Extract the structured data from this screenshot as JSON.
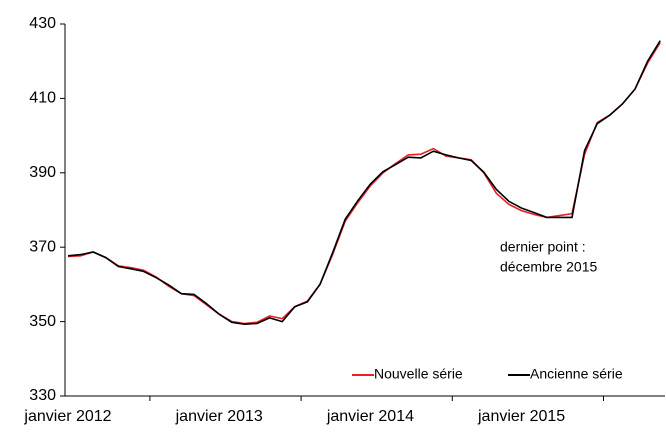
{
  "chart_data": {
    "type": "line",
    "categories": [
      "janvier 2012",
      null,
      null,
      null,
      null,
      null,
      null,
      null,
      null,
      null,
      null,
      null,
      "janvier 2013",
      null,
      null,
      null,
      null,
      null,
      null,
      null,
      null,
      null,
      null,
      null,
      "janvier 2014",
      null,
      null,
      null,
      null,
      null,
      null,
      null,
      null,
      null,
      null,
      null,
      "janvier 2015",
      null,
      null,
      null,
      null,
      null,
      null,
      null,
      null,
      null,
      null,
      null
    ],
    "series": [
      {
        "name": "Nouvelle série",
        "color": "#e8202a",
        "values": [
          367.5,
          367.7,
          368.7,
          367.2,
          365,
          364.5,
          363.8,
          362,
          359.5,
          357.5,
          357,
          354.5,
          352,
          350,
          349.5,
          349.8,
          351.5,
          350.8,
          354,
          355.5,
          360,
          368,
          377,
          382,
          386.5,
          390,
          392.5,
          394.8,
          395,
          396.5,
          394.5,
          394,
          393.5,
          390,
          384.5,
          381.5,
          379.8,
          378.8,
          378,
          378.5,
          379,
          395,
          403.5,
          405.5,
          408.5,
          412.5,
          419.5,
          425
        ]
      },
      {
        "name": "Ancienne série",
        "color": "#000000",
        "values": [
          367.7,
          368,
          368.7,
          367.2,
          364.8,
          364.2,
          363.5,
          361.8,
          359.8,
          357.5,
          357.3,
          354.8,
          352,
          349.8,
          349.3,
          349.5,
          351,
          350,
          354,
          355.3,
          360,
          368.5,
          377.5,
          382.5,
          387,
          390.3,
          392.2,
          394.2,
          394,
          395.8,
          394.8,
          394,
          393.3,
          390.2,
          385.5,
          382.3,
          380.5,
          379.3,
          378,
          378,
          378,
          396,
          403.2,
          405.5,
          408.5,
          412.5,
          420,
          425.5
        ]
      }
    ],
    "ylim": [
      330,
      430
    ],
    "yticks": [
      330,
      350,
      370,
      390,
      410,
      430
    ],
    "annotation": [
      "dernier point :",
      "décembre 2015"
    ],
    "legend": "lower right",
    "grid": false
  }
}
